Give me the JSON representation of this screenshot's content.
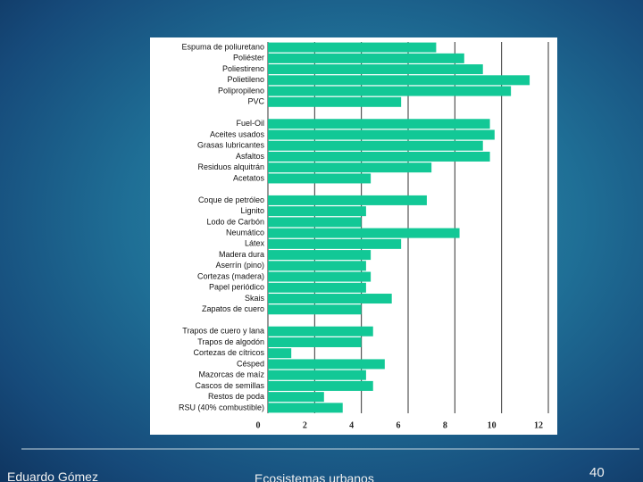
{
  "chart_data": {
    "type": "bar",
    "orientation": "horizontal",
    "categories": [
      "Espuma de poliuretano",
      "Poliéster",
      "Poliestireno",
      "Polietileno",
      "Polipropileno",
      "PVC",
      null,
      "Fuel-Oil",
      "Aceites usados",
      "Grasas lubricantes",
      "Asfaltos",
      "Residuos alquitrán",
      "Acetatos",
      null,
      "Coque de petróleo",
      "Lignito",
      "Lodo de Carbón",
      "Neumático",
      "Látex",
      "Madera dura",
      "Aserrín (pino)",
      "Cortezas (madera)",
      "Papel periódico",
      "Skais",
      "Zapatos de cuero",
      null,
      "Trapos de cuero y lana",
      "Trapos de algodón",
      "Cortezas de cítricos",
      "Césped",
      "Mazorcas de maíz",
      "Cascos de semillas",
      "Restos de poda",
      "RSU (40% combustible)"
    ],
    "values": [
      7.2,
      8.4,
      9.2,
      11.2,
      10.4,
      5.7,
      null,
      9.5,
      9.7,
      9.2,
      9.5,
      7.0,
      4.4,
      null,
      6.8,
      4.2,
      4.0,
      8.2,
      5.7,
      4.4,
      4.2,
      4.4,
      4.2,
      5.3,
      4.0,
      null,
      4.5,
      4.0,
      1.0,
      5.0,
      4.2,
      4.5,
      2.4,
      3.2
    ],
    "color": "#12c896",
    "xlim": [
      0,
      12
    ],
    "xticks": [
      0,
      2,
      4,
      6,
      8,
      10,
      12
    ],
    "grid": true
  },
  "footer": {
    "author": "Eduardo Gómez",
    "subject": "Ecosistemas urbanos",
    "page": "40"
  }
}
